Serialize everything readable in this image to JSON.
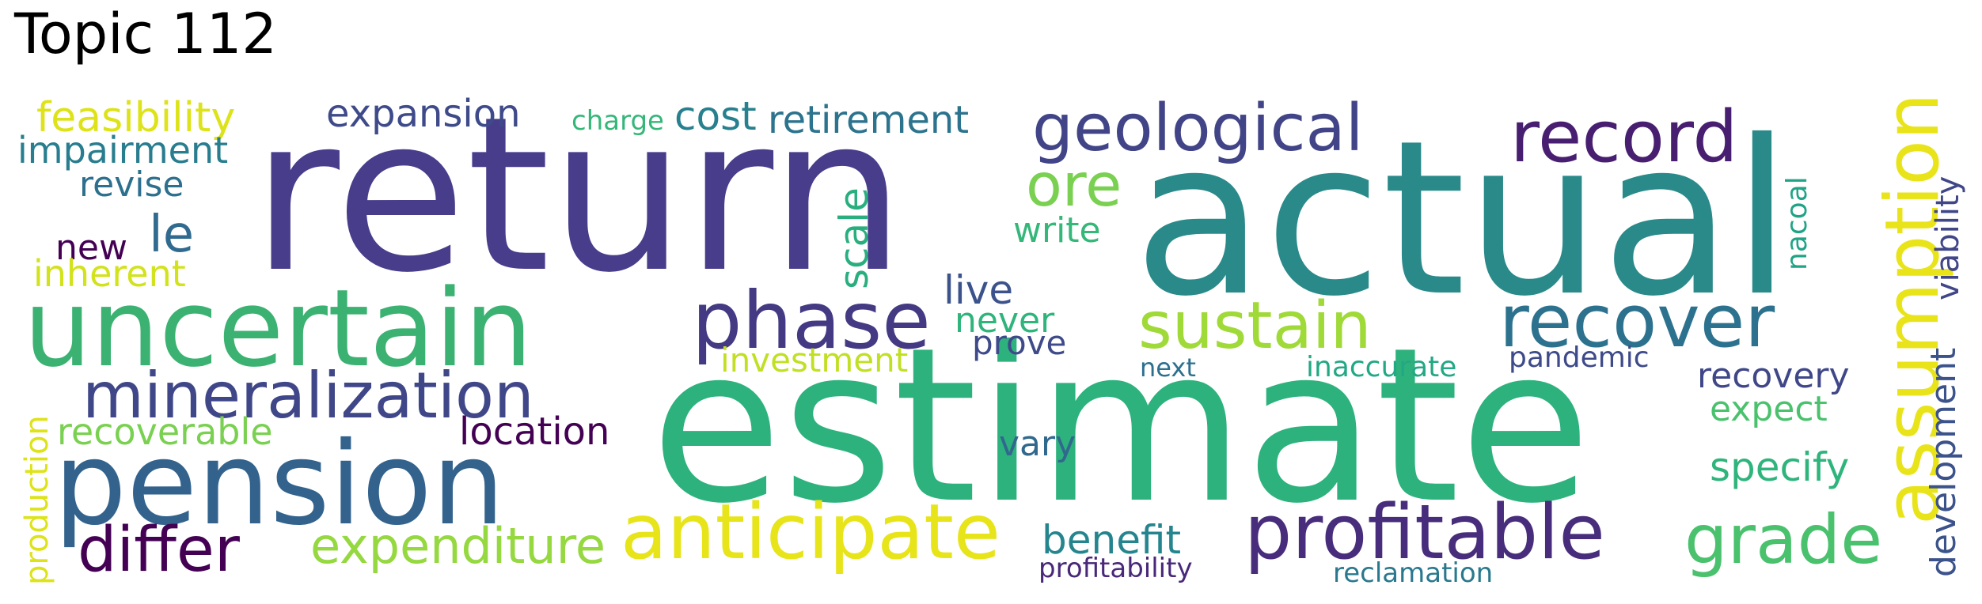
{
  "title": "Topic 112",
  "words": [
    {
      "text": "return",
      "color": "#483D8B"
    },
    {
      "text": "actual",
      "color": "#2A8A8A"
    },
    {
      "text": "estimate",
      "color": "#2DB27D"
    },
    {
      "text": "uncertain",
      "color": "#3BB272"
    },
    {
      "text": "pension",
      "color": "#33638D"
    },
    {
      "text": "mineralization",
      "color": "#3F4788"
    },
    {
      "text": "geological",
      "color": "#414487"
    },
    {
      "text": "record",
      "color": "#481F70"
    },
    {
      "text": "phase",
      "color": "#443A83"
    },
    {
      "text": "recover",
      "color": "#2C728E"
    },
    {
      "text": "sustain",
      "color": "#A0DA39"
    },
    {
      "text": "anticipate",
      "color": "#E7E419"
    },
    {
      "text": "profitable",
      "color": "#472D7B"
    },
    {
      "text": "grade",
      "color": "#4AC16D"
    },
    {
      "text": "differ",
      "color": "#440154"
    },
    {
      "text": "expenditure",
      "color": "#95D840"
    },
    {
      "text": "assumption",
      "color": "#E8E419"
    },
    {
      "text": "ore",
      "color": "#7AD151"
    },
    {
      "text": "feasibility",
      "color": "#DDE318"
    },
    {
      "text": "expansion",
      "color": "#3E4A89"
    },
    {
      "text": "retirement",
      "color": "#2C738E"
    },
    {
      "text": "cost",
      "color": "#27808E"
    },
    {
      "text": "charge",
      "color": "#35B779"
    },
    {
      "text": "impairment",
      "color": "#287D8E"
    },
    {
      "text": "revise",
      "color": "#2D708E"
    },
    {
      "text": "le",
      "color": "#306A8E"
    },
    {
      "text": "new",
      "color": "#440154"
    },
    {
      "text": "inherent",
      "color": "#D2E21B"
    },
    {
      "text": "scale",
      "color": "#29AF7F"
    },
    {
      "text": "write",
      "color": "#35B779"
    },
    {
      "text": "live",
      "color": "#3B528B"
    },
    {
      "text": "never",
      "color": "#2FB47C"
    },
    {
      "text": "prove",
      "color": "#3E4A89"
    },
    {
      "text": "investment",
      "color": "#C2DF23"
    },
    {
      "text": "next",
      "color": "#2D708E"
    },
    {
      "text": "inaccurate",
      "color": "#22A884"
    },
    {
      "text": "pandemic",
      "color": "#3E4A89"
    },
    {
      "text": "recovery",
      "color": "#3F4788"
    },
    {
      "text": "expect",
      "color": "#4AC16D"
    },
    {
      "text": "specify",
      "color": "#2FB47C"
    },
    {
      "text": "vary",
      "color": "#31688E"
    },
    {
      "text": "location",
      "color": "#440154"
    },
    {
      "text": "recoverable",
      "color": "#7AD151"
    },
    {
      "text": "production",
      "color": "#DDE318"
    },
    {
      "text": "benefit",
      "color": "#25858E"
    },
    {
      "text": "profitability",
      "color": "#482878"
    },
    {
      "text": "reclamation",
      "color": "#2A788E"
    },
    {
      "text": "development",
      "color": "#3B528B"
    },
    {
      "text": "viability",
      "color": "#404688"
    },
    {
      "text": "nacoal",
      "color": "#20A386"
    }
  ]
}
